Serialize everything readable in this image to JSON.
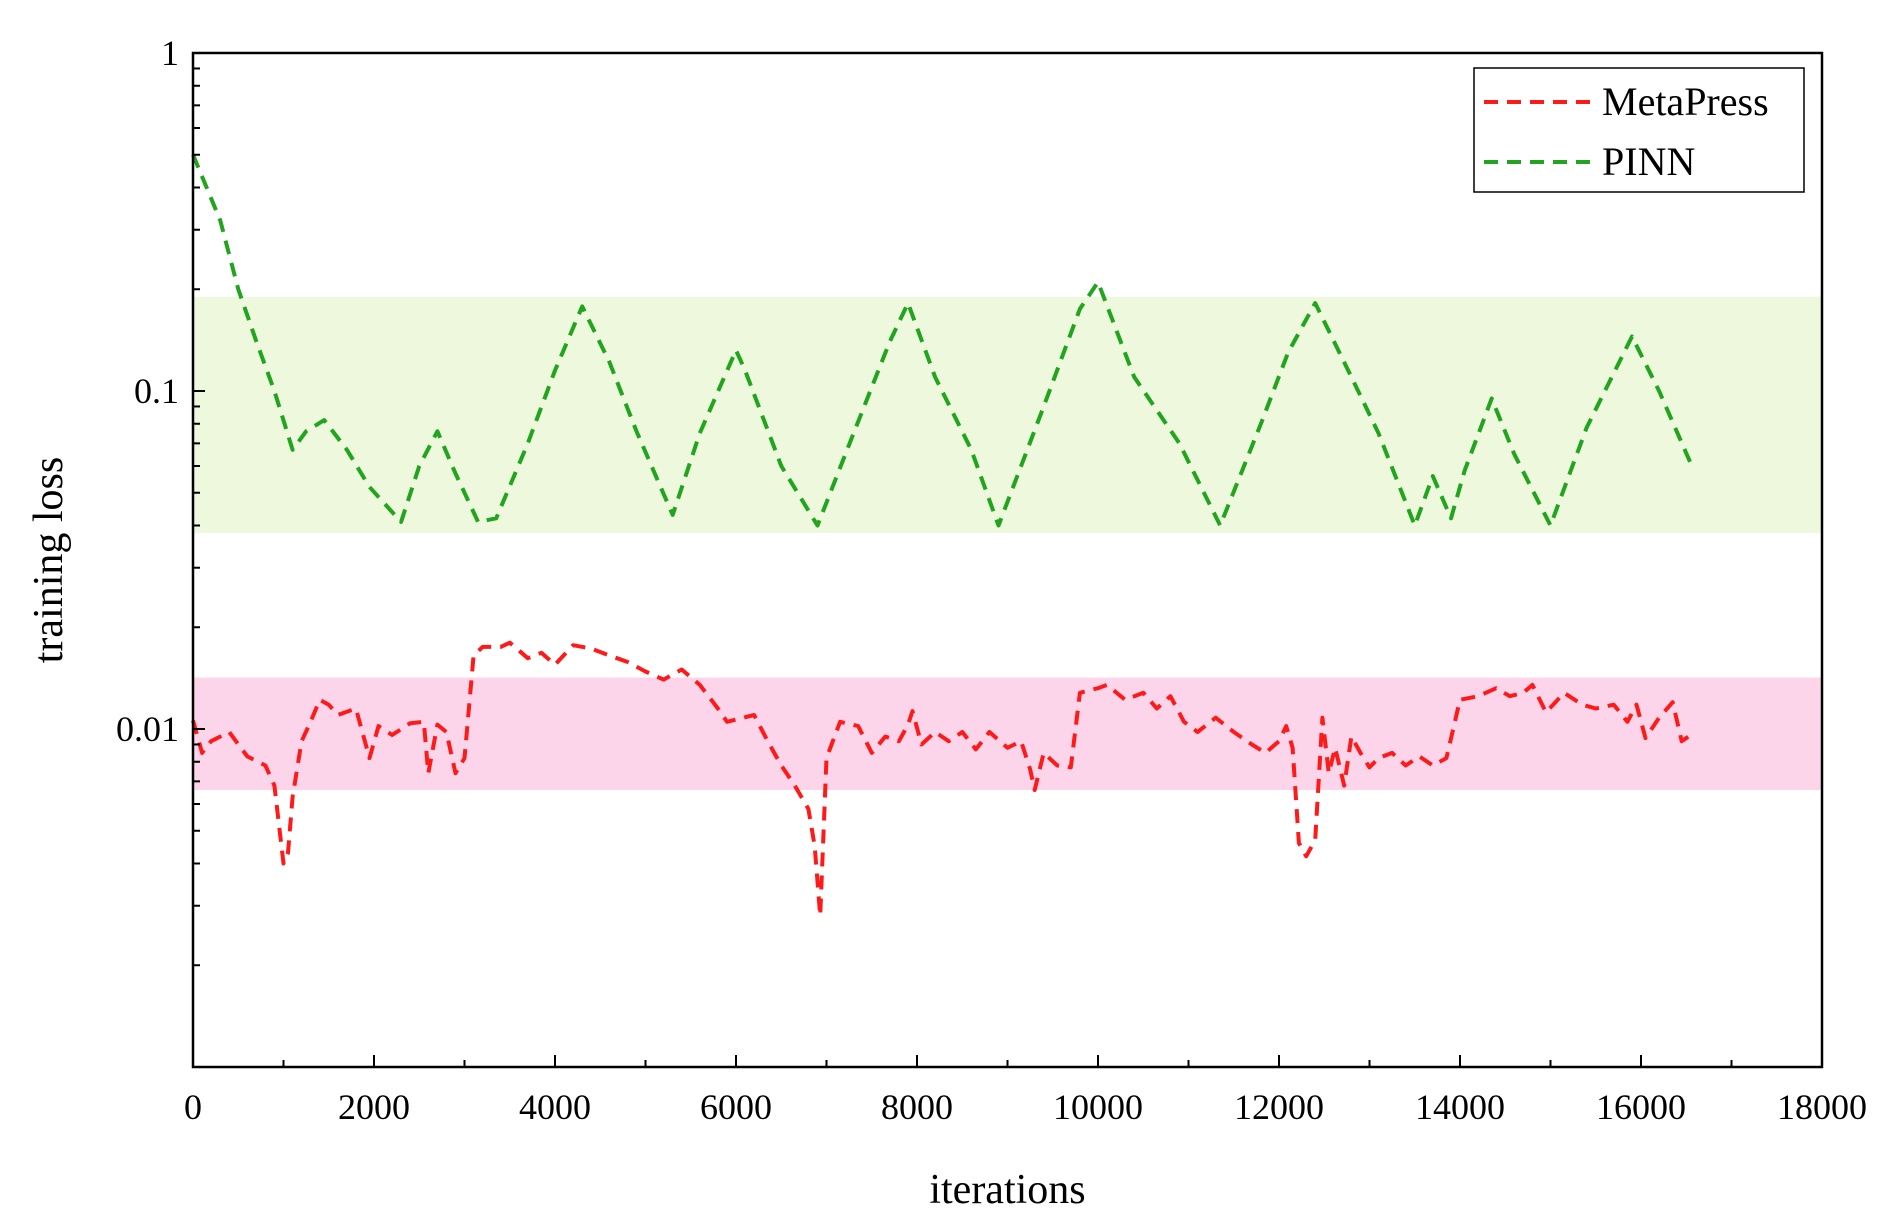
{
  "chart_data": {
    "type": "line",
    "xlabel": "iterations",
    "ylabel": "training loss",
    "xlim": [
      0,
      18000
    ],
    "ylim": [
      0.001,
      1
    ],
    "y_scale": "log",
    "grid": false,
    "legend_placement": "top-right",
    "x_ticks": [
      0,
      2000,
      4000,
      6000,
      8000,
      10000,
      12000,
      14000,
      16000,
      18000
    ],
    "x_tick_labels": [
      "0",
      "2000",
      "4000",
      "6000",
      "8000",
      "10000",
      "12000",
      "14000",
      "16000",
      "18000"
    ],
    "y_ticks": [
      1,
      0.1,
      0.01
    ],
    "y_tick_labels": [
      "1",
      "0.1",
      "0.01"
    ],
    "bands": [
      {
        "series": "PINN",
        "y_range": [
          0.038,
          0.19
        ],
        "color": "#eef8dc"
      },
      {
        "series": "MetaPress",
        "y_range": [
          0.0066,
          0.0142
        ],
        "color": "#fdd5ea"
      }
    ],
    "series": [
      {
        "name": "MetaPress",
        "color": "#ff1a1a",
        "style": "dashed",
        "points": [
          [
            0,
            0.0106
          ],
          [
            100,
            0.0085
          ],
          [
            200,
            0.0092
          ],
          [
            400,
            0.0098
          ],
          [
            600,
            0.0083
          ],
          [
            800,
            0.0078
          ],
          [
            900,
            0.0068
          ],
          [
            1000,
            0.004
          ],
          [
            1050,
            0.0043
          ],
          [
            1100,
            0.0063
          ],
          [
            1200,
            0.0092
          ],
          [
            1300,
            0.0105
          ],
          [
            1400,
            0.0122
          ],
          [
            1500,
            0.0118
          ],
          [
            1600,
            0.011
          ],
          [
            1800,
            0.0115
          ],
          [
            1950,
            0.0082
          ],
          [
            2050,
            0.0102
          ],
          [
            2200,
            0.0096
          ],
          [
            2400,
            0.0104
          ],
          [
            2550,
            0.0105
          ],
          [
            2600,
            0.0074
          ],
          [
            2700,
            0.0103
          ],
          [
            2800,
            0.0098
          ],
          [
            2900,
            0.0074
          ],
          [
            3000,
            0.0082
          ],
          [
            3100,
            0.0165
          ],
          [
            3200,
            0.0175
          ],
          [
            3400,
            0.0175
          ],
          [
            3500,
            0.018
          ],
          [
            3700,
            0.0162
          ],
          [
            3850,
            0.0168
          ],
          [
            4000,
            0.0155
          ],
          [
            4200,
            0.0177
          ],
          [
            4400,
            0.0173
          ],
          [
            4600,
            0.0165
          ],
          [
            4800,
            0.0158
          ],
          [
            5000,
            0.0148
          ],
          [
            5200,
            0.014
          ],
          [
            5400,
            0.015
          ],
          [
            5600,
            0.0135
          ],
          [
            5800,
            0.0115
          ],
          [
            5900,
            0.0105
          ],
          [
            6200,
            0.011
          ],
          [
            6350,
            0.0092
          ],
          [
            6500,
            0.0078
          ],
          [
            6650,
            0.0068
          ],
          [
            6800,
            0.0058
          ],
          [
            6870,
            0.0045
          ],
          [
            6930,
            0.0028
          ],
          [
            7000,
            0.0082
          ],
          [
            7150,
            0.0105
          ],
          [
            7350,
            0.0102
          ],
          [
            7500,
            0.0085
          ],
          [
            7650,
            0.0095
          ],
          [
            7800,
            0.0092
          ],
          [
            7900,
            0.0103
          ],
          [
            7950,
            0.0113
          ],
          [
            8050,
            0.009
          ],
          [
            8200,
            0.0098
          ],
          [
            8350,
            0.0092
          ],
          [
            8500,
            0.0098
          ],
          [
            8650,
            0.0087
          ],
          [
            8800,
            0.0098
          ],
          [
            9000,
            0.0088
          ],
          [
            9150,
            0.0092
          ],
          [
            9250,
            0.0076
          ],
          [
            9300,
            0.0066
          ],
          [
            9400,
            0.0085
          ],
          [
            9550,
            0.0078
          ],
          [
            9700,
            0.0077
          ],
          [
            9800,
            0.0128
          ],
          [
            10000,
            0.0132
          ],
          [
            10100,
            0.0135
          ],
          [
            10300,
            0.0122
          ],
          [
            10500,
            0.0128
          ],
          [
            10650,
            0.0115
          ],
          [
            10800,
            0.0125
          ],
          [
            10950,
            0.0105
          ],
          [
            11100,
            0.0098
          ],
          [
            11300,
            0.0108
          ],
          [
            11500,
            0.0098
          ],
          [
            11700,
            0.009
          ],
          [
            11850,
            0.0085
          ],
          [
            12000,
            0.0092
          ],
          [
            12080,
            0.0102
          ],
          [
            12150,
            0.0088
          ],
          [
            12220,
            0.0046
          ],
          [
            12300,
            0.0042
          ],
          [
            12400,
            0.0047
          ],
          [
            12480,
            0.0108
          ],
          [
            12550,
            0.0074
          ],
          [
            12620,
            0.0088
          ],
          [
            12720,
            0.0068
          ],
          [
            12800,
            0.0095
          ],
          [
            12900,
            0.0085
          ],
          [
            13000,
            0.0077
          ],
          [
            13100,
            0.0082
          ],
          [
            13250,
            0.0085
          ],
          [
            13400,
            0.0078
          ],
          [
            13550,
            0.0083
          ],
          [
            13700,
            0.0078
          ],
          [
            13850,
            0.0082
          ],
          [
            14000,
            0.0122
          ],
          [
            14200,
            0.0125
          ],
          [
            14400,
            0.0132
          ],
          [
            14550,
            0.0125
          ],
          [
            14700,
            0.0128
          ],
          [
            14800,
            0.0135
          ],
          [
            14950,
            0.0112
          ],
          [
            15150,
            0.0128
          ],
          [
            15350,
            0.0118
          ],
          [
            15500,
            0.0115
          ],
          [
            15700,
            0.0118
          ],
          [
            15850,
            0.0105
          ],
          [
            15950,
            0.0118
          ],
          [
            16050,
            0.0094
          ],
          [
            16200,
            0.0108
          ],
          [
            16350,
            0.012
          ],
          [
            16450,
            0.0092
          ],
          [
            16550,
            0.0096
          ]
        ]
      },
      {
        "name": "PINN",
        "color": "#22a51e",
        "style": "dashed",
        "points": [
          [
            0,
            0.5
          ],
          [
            150,
            0.4
          ],
          [
            300,
            0.32
          ],
          [
            500,
            0.2
          ],
          [
            700,
            0.14
          ],
          [
            900,
            0.1
          ],
          [
            1100,
            0.067
          ],
          [
            1250,
            0.076
          ],
          [
            1450,
            0.082
          ],
          [
            1700,
            0.067
          ],
          [
            1950,
            0.052
          ],
          [
            2300,
            0.041
          ],
          [
            2500,
            0.06
          ],
          [
            2700,
            0.076
          ],
          [
            2900,
            0.057
          ],
          [
            3150,
            0.041
          ],
          [
            3350,
            0.042
          ],
          [
            3700,
            0.07
          ],
          [
            4000,
            0.115
          ],
          [
            4300,
            0.178
          ],
          [
            4600,
            0.122
          ],
          [
            4900,
            0.076
          ],
          [
            5300,
            0.043
          ],
          [
            5600,
            0.075
          ],
          [
            6000,
            0.132
          ],
          [
            6100,
            0.115
          ],
          [
            6500,
            0.06
          ],
          [
            6900,
            0.04
          ],
          [
            7300,
            0.075
          ],
          [
            7700,
            0.14
          ],
          [
            7900,
            0.182
          ],
          [
            8200,
            0.11
          ],
          [
            8600,
            0.067
          ],
          [
            8900,
            0.04
          ],
          [
            9400,
            0.09
          ],
          [
            9800,
            0.175
          ],
          [
            10000,
            0.21
          ],
          [
            10400,
            0.11
          ],
          [
            10900,
            0.07
          ],
          [
            11350,
            0.04
          ],
          [
            11800,
            0.08
          ],
          [
            12100,
            0.13
          ],
          [
            12400,
            0.182
          ],
          [
            12800,
            0.11
          ],
          [
            13100,
            0.075
          ],
          [
            13500,
            0.04
          ],
          [
            13700,
            0.056
          ],
          [
            13900,
            0.042
          ],
          [
            14050,
            0.058
          ],
          [
            14350,
            0.095
          ],
          [
            14600,
            0.065
          ],
          [
            15000,
            0.04
          ],
          [
            15400,
            0.078
          ],
          [
            15900,
            0.145
          ],
          [
            16200,
            0.1
          ],
          [
            16550,
            0.061
          ]
        ]
      }
    ]
  }
}
